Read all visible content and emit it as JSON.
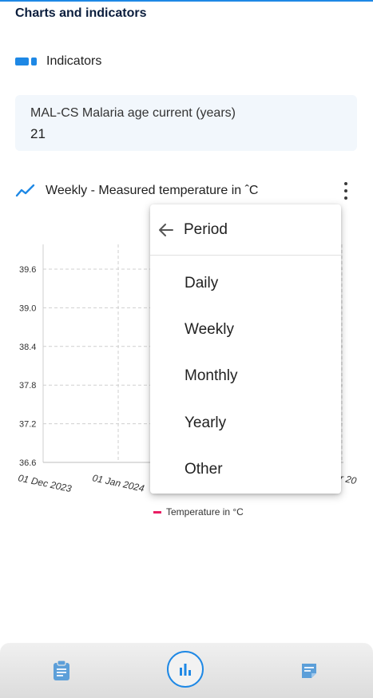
{
  "section": {
    "title": "Charts and indicators"
  },
  "indicators": {
    "header_label": "Indicators",
    "items": [
      {
        "name": "MAL-CS Malaria age current (years)",
        "value": "21"
      }
    ]
  },
  "chart_card": {
    "title": "Weekly - Measured temperature in ˆC"
  },
  "period_menu": {
    "title": "Period",
    "options": [
      "Daily",
      "Weekly",
      "Monthly",
      "Yearly",
      "Other"
    ]
  },
  "colors": {
    "accent": "#1e88e5",
    "series": "#e91e63"
  },
  "icons": {
    "indicators": "bar-indicator-icon",
    "chart": "trend-line-icon",
    "menu": "kebab-menu-icon",
    "back": "arrow-back-icon",
    "nav_left": "clipboard-icon",
    "nav_center": "bar-chart-icon",
    "nav_right": "note-icon"
  },
  "chart_data": {
    "type": "line",
    "title": "",
    "xlabel": "",
    "ylabel": "",
    "y_ticks": [
      "36.6",
      "37.2",
      "37.8",
      "38.4",
      "39.0",
      "39.6"
    ],
    "ylim": [
      36.6,
      39.6
    ],
    "x_tick_labels": [
      "01 Dec 2023",
      "01 Jan 2024"
    ],
    "x_tick_label_partial": "r 20",
    "grid": true,
    "legend": {
      "position": "bottom",
      "entries": [
        "Temperature in °C"
      ]
    },
    "series": [
      {
        "name": "Temperature in °C",
        "values": []
      }
    ]
  }
}
